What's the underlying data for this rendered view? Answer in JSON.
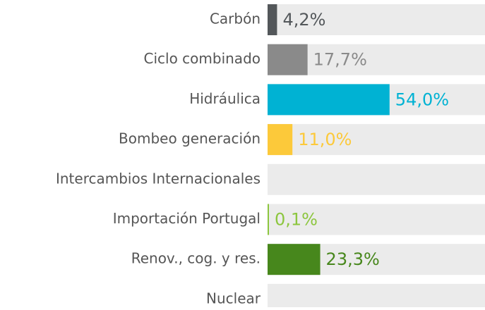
{
  "chart_data": {
    "type": "bar",
    "orientation": "horizontal",
    "categories": [
      "Carbón",
      "Ciclo combinado",
      "Hidráulica",
      "Bombeo generación",
      "Intercambios Internacionales",
      "Importación Portugal",
      "Renov., cog. y res.",
      "Nuclear"
    ],
    "values": [
      4.2,
      17.7,
      54.0,
      11.0,
      null,
      0.1,
      23.3,
      null
    ],
    "value_labels": [
      "4,2%",
      "17,7%",
      "54,0%",
      "11,0%",
      null,
      "0,1%",
      "23,3%",
      null
    ],
    "colors": [
      "#53575a",
      "#8a8a8a",
      "#00b2d3",
      "#fcc93a",
      null,
      "#8cc63e",
      "#47871c",
      null
    ],
    "xlim": [
      0,
      100
    ]
  }
}
